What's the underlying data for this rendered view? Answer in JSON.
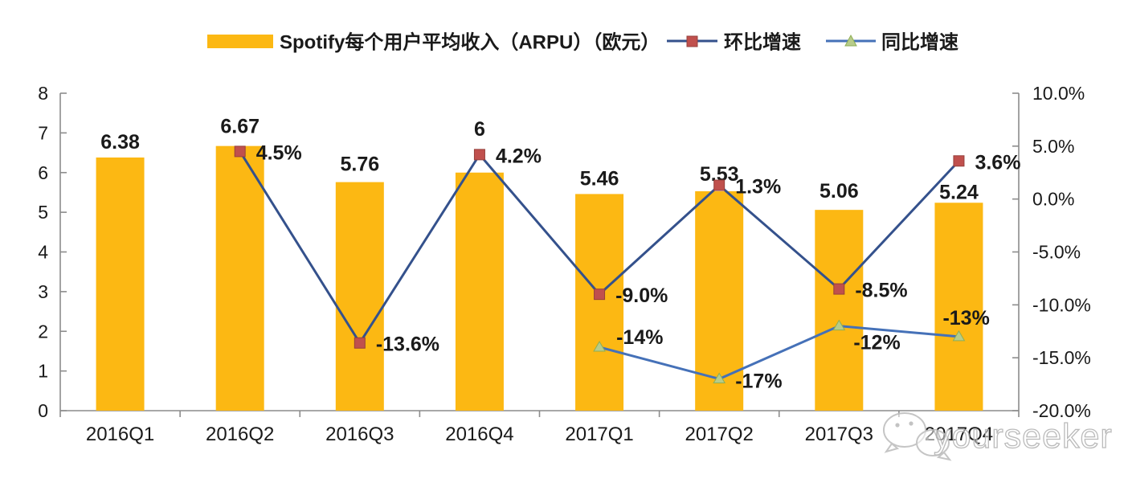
{
  "legend": {
    "bars": "Spotify每个用户平均收入（ARPU）（欧元）",
    "qoq": "环比增速",
    "yoy": "同比增速"
  },
  "watermark": {
    "text": "yourseeker",
    "icon": "wechat-icon"
  },
  "colors": {
    "bar": "#FCB813",
    "qoq_line": "#34518C",
    "qoq_marker": "#C0504D",
    "qoq_marker_edge": "#96403C",
    "yoy_line": "#4571B8",
    "yoy_marker_fill": "#B7CC8A",
    "yoy_marker_edge": "#8EAE54",
    "axis": "#8C8C8C",
    "ink": "#1A1A1A"
  },
  "chart_data": {
    "type": "combo-bar-line",
    "categories": [
      "2016Q1",
      "2016Q2",
      "2016Q3",
      "2016Q4",
      "2017Q1",
      "2017Q2",
      "2017Q3",
      "2017Q4"
    ],
    "series": [
      {
        "name": "Spotify每个用户平均收入（ARPU）（欧元）",
        "type": "bar",
        "axis": "left",
        "values": [
          6.38,
          6.67,
          5.76,
          6.0,
          5.46,
          5.53,
          5.06,
          5.24
        ],
        "labels": [
          "6.38",
          "6.67",
          "5.76",
          "6",
          "5.46",
          "5.53",
          "5.06",
          "5.24"
        ]
      },
      {
        "name": "环比增速",
        "type": "line",
        "axis": "right",
        "marker": "square",
        "values": [
          null,
          4.5,
          -13.6,
          4.2,
          -9.0,
          1.3,
          -8.5,
          3.6
        ],
        "labels": [
          null,
          "4.5%",
          "-13.6%",
          "4.2%",
          "-9.0%",
          "1.3%",
          "-8.5%",
          "3.6%"
        ]
      },
      {
        "name": "同比增速",
        "type": "line",
        "axis": "right",
        "marker": "triangle",
        "values": [
          null,
          null,
          null,
          null,
          -14,
          -17,
          -12,
          -13
        ],
        "labels": [
          null,
          null,
          null,
          null,
          "-14%",
          "-17%",
          "-12%",
          "-13%"
        ]
      }
    ],
    "left_axis": {
      "min": 0,
      "max": 8,
      "step": 1,
      "tick_labels": [
        "0",
        "1",
        "2",
        "3",
        "4",
        "5",
        "6",
        "7",
        "8"
      ]
    },
    "right_axis": {
      "min": -20,
      "max": 10,
      "step": 5,
      "tick_labels": [
        "10.0%",
        "5.0%",
        "0.0%",
        "-5.0%",
        "-10.0%",
        "-15.0%",
        "-20.0%"
      ]
    },
    "grid": false,
    "legend_position": "top"
  }
}
